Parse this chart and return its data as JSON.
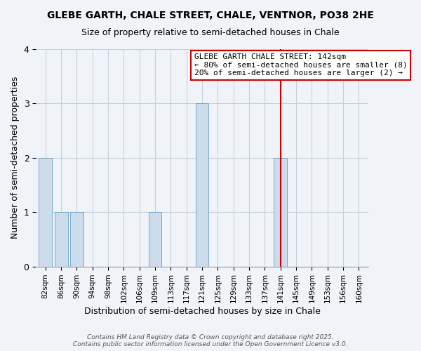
{
  "title": "GLEBE GARTH, CHALE STREET, CHALE, VENTNOR, PO38 2HE",
  "subtitle": "Size of property relative to semi-detached houses in Chale",
  "xlabel": "Distribution of semi-detached houses by size in Chale",
  "ylabel": "Number of semi-detached properties",
  "categories": [
    "82sqm",
    "86sqm",
    "90sqm",
    "94sqm",
    "98sqm",
    "102sqm",
    "106sqm",
    "109sqm",
    "113sqm",
    "117sqm",
    "121sqm",
    "125sqm",
    "129sqm",
    "133sqm",
    "137sqm",
    "141sqm",
    "145sqm",
    "149sqm",
    "153sqm",
    "156sqm",
    "160sqm"
  ],
  "values": [
    2,
    1,
    1,
    0,
    0,
    0,
    0,
    1,
    0,
    0,
    3,
    0,
    0,
    0,
    0,
    2,
    0,
    0,
    0,
    0,
    0
  ],
  "bar_color": "#ccdcec",
  "bar_edge_color": "#7aaaca",
  "reference_line_index": 15,
  "reference_line_color": "#cc0000",
  "annotation_text": "GLEBE GARTH CHALE STREET: 142sqm\n← 80% of semi-detached houses are smaller (8)\n20% of semi-detached houses are larger (2) →",
  "annotation_box_edge_color": "#cc0000",
  "ylim": [
    0,
    4
  ],
  "yticks": [
    0,
    1,
    2,
    3,
    4
  ],
  "footer_line1": "Contains HM Land Registry data © Crown copyright and database right 2025.",
  "footer_line2": "Contains public sector information licensed under the Open Government Licence v3.0.",
  "bg_color": "#f0f4f8",
  "plot_bg_color": "#f0f4f8",
  "title_fontsize": 10,
  "subtitle_fontsize": 9
}
